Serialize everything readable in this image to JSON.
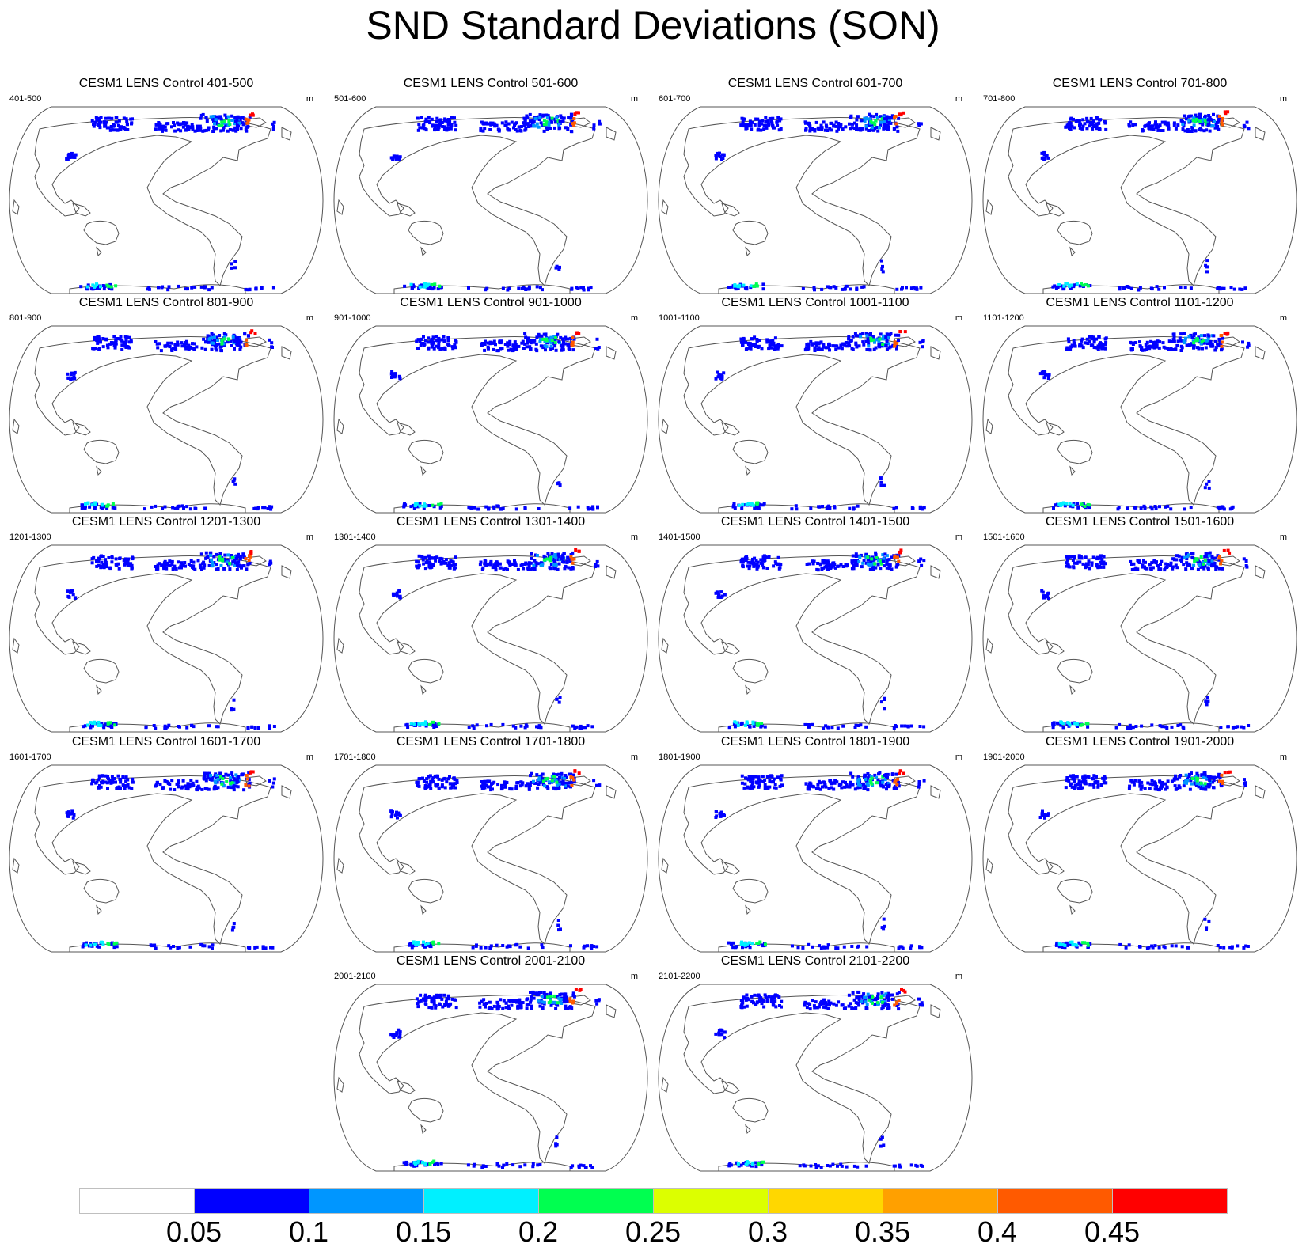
{
  "title": "SND Standard Deviations (SON)",
  "units": "m",
  "panels": [
    {
      "title": "CESM1 LENS Control 401-500",
      "label": "401-500"
    },
    {
      "title": "CESM1 LENS Control 501-600",
      "label": "501-600"
    },
    {
      "title": "CESM1 LENS Control 601-700",
      "label": "601-700"
    },
    {
      "title": "CESM1 LENS Control 701-800",
      "label": "701-800"
    },
    {
      "title": "CESM1 LENS Control 801-900",
      "label": "801-900"
    },
    {
      "title": "CESM1 LENS Control 901-1000",
      "label": "901-1000"
    },
    {
      "title": "CESM1 LENS Control 1001-1100",
      "label": "1001-1100"
    },
    {
      "title": "CESM1 LENS Control 1101-1200",
      "label": "1101-1200"
    },
    {
      "title": "CESM1 LENS Control 1201-1300",
      "label": "1201-1300"
    },
    {
      "title": "CESM1 LENS Control 1301-1400",
      "label": "1301-1400"
    },
    {
      "title": "CESM1 LENS Control 1401-1500",
      "label": "1401-1500"
    },
    {
      "title": "CESM1 LENS Control 1501-1600",
      "label": "1501-1600"
    },
    {
      "title": "CESM1 LENS Control 1601-1700",
      "label": "1601-1700"
    },
    {
      "title": "CESM1 LENS Control 1701-1800",
      "label": "1701-1800"
    },
    {
      "title": "CESM1 LENS Control 1801-1900",
      "label": "1801-1900"
    },
    {
      "title": "CESM1 LENS Control 1901-2000",
      "label": "1901-2000"
    },
    {
      "title": "CESM1 LENS Control 2001-2100",
      "label": "2001-2100"
    },
    {
      "title": "CESM1 LENS Control 2101-2200",
      "label": "2101-2200"
    }
  ],
  "colorbar": {
    "ticks": [
      "0.05",
      "0.1",
      "0.15",
      "0.2",
      "0.25",
      "0.3",
      "0.35",
      "0.4",
      "0.45"
    ],
    "colors": [
      "#ffffff",
      "#0000ff",
      "#0096ff",
      "#00f0ff",
      "#00ff50",
      "#dcff00",
      "#ffd700",
      "#ffa000",
      "#ff5a00",
      "#ff0000"
    ]
  },
  "colors": {
    "coast": "#555555",
    "outline": "#555555"
  }
}
